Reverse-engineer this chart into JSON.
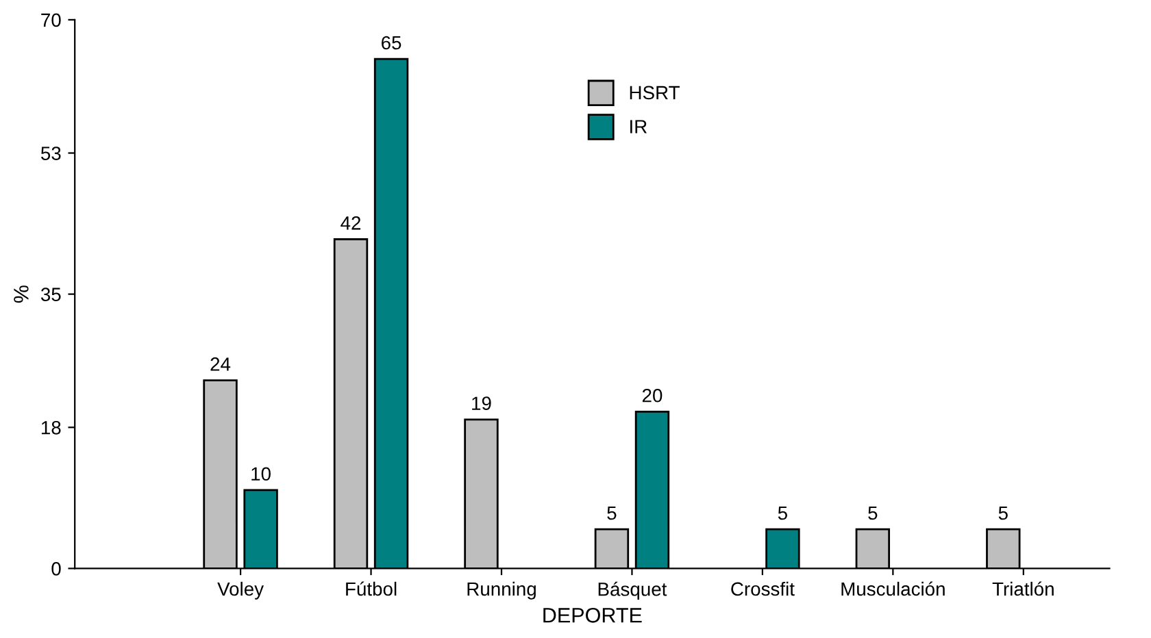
{
  "chart_data": {
    "type": "bar",
    "xlabel": "DEPORTE",
    "ylabel": "%",
    "categories": [
      "Voley",
      "Fútbol",
      "Running",
      "Básquet",
      "Crossfit",
      "Musculación",
      "Triatlón"
    ],
    "series": [
      {
        "name": "HSRT",
        "color": "#bebebe",
        "values": [
          24,
          42,
          19,
          5,
          null,
          5,
          5
        ]
      },
      {
        "name": "IR",
        "color": "#008080",
        "values": [
          10,
          65,
          null,
          20,
          5,
          null,
          null
        ]
      }
    ],
    "ylim": [
      0,
      70
    ],
    "yticks": [
      0,
      18,
      35,
      53,
      70
    ],
    "grid": false,
    "legend": "top right",
    "data_labels": true
  }
}
